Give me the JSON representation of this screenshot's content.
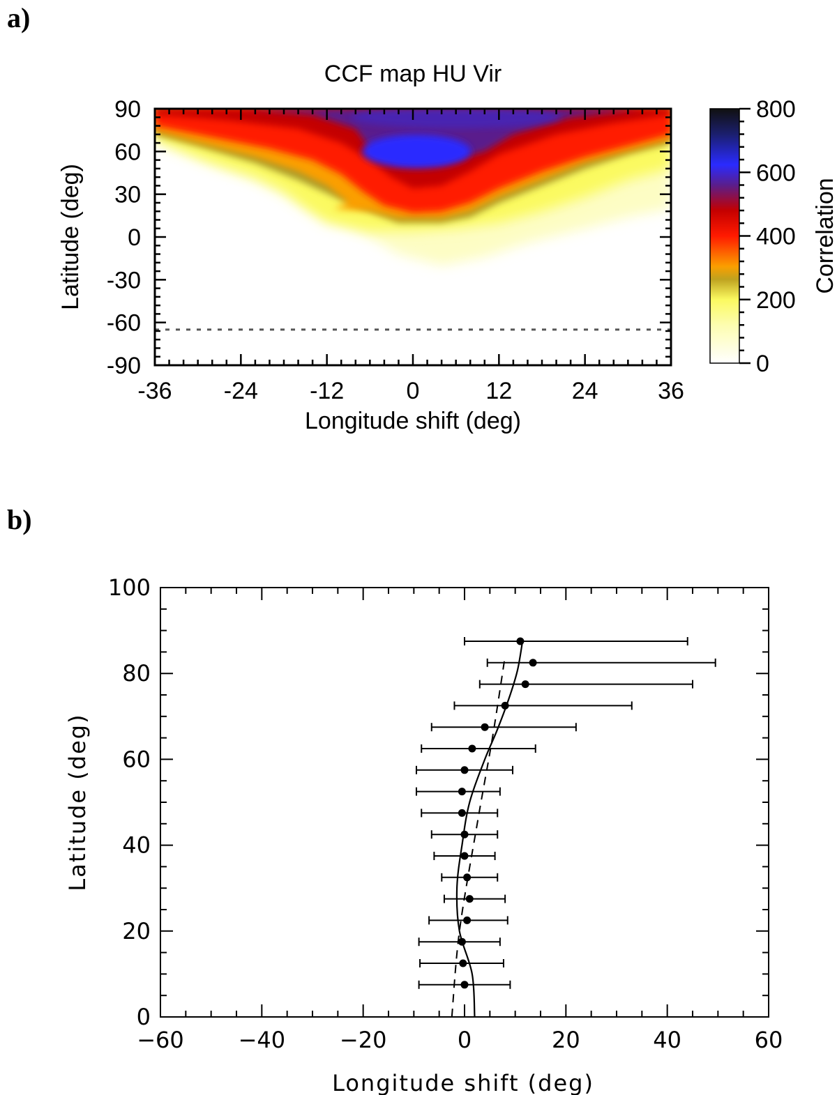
{
  "panel_a_label": "a)",
  "panel_b_label": "b)",
  "chart_data": [
    {
      "type": "heatmap",
      "title": "CCF map HU Vir",
      "xlabel": "Longitude shift (deg)",
      "ylabel": "Latitude (deg)",
      "xlim": [
        -36,
        36
      ],
      "ylim": [
        -90,
        90
      ],
      "xticks": [
        "-36",
        "-24",
        "-12",
        "0",
        "12",
        "24",
        "36"
      ],
      "yticks": [
        "90",
        "60",
        "30",
        "0",
        "-30",
        "-60",
        "-90"
      ],
      "colorbar": {
        "label": "Correlation",
        "range": [
          0,
          800
        ],
        "ticks": [
          "800",
          "600",
          "400",
          "200",
          "0"
        ]
      },
      "reference_line_latitude": -65,
      "peak": {
        "longitude_shift": 0,
        "latitude": 60,
        "correlation": 700
      },
      "colors": {
        "low": "#ffffff",
        "yellow": "#fbfa60",
        "orange": "#fb9f00",
        "red": "#ff1a00",
        "darkred": "#c40000",
        "purple": "#5a1e8c",
        "blue": "#2a2bff"
      }
    },
    {
      "type": "scatter",
      "xlabel": "Longitude shift (deg)",
      "ylabel": "Latitude (deg)",
      "xlim": [
        -60,
        60
      ],
      "ylim": [
        0,
        100
      ],
      "xticks": [
        "−60",
        "−40",
        "−20",
        "0",
        "20",
        "40",
        "60"
      ],
      "yticks": [
        "100",
        "80",
        "60",
        "40",
        "20",
        "0"
      ],
      "points": [
        {
          "lat": 7.5,
          "lon": 0.0,
          "err_lo": -9.0,
          "err_hi": 9.0
        },
        {
          "lat": 12.5,
          "lon": -0.3,
          "err_lo": -8.5,
          "err_hi": 8.0
        },
        {
          "lat": 17.5,
          "lon": -0.5,
          "err_lo": -8.5,
          "err_hi": 7.5
        },
        {
          "lat": 22.5,
          "lon": 0.5,
          "err_lo": -7.5,
          "err_hi": 8.0
        },
        {
          "lat": 27.5,
          "lon": 1.0,
          "err_lo": -5.0,
          "err_hi": 7.0
        },
        {
          "lat": 32.5,
          "lon": 0.5,
          "err_lo": -5.0,
          "err_hi": 6.0
        },
        {
          "lat": 37.5,
          "lon": 0.0,
          "err_lo": -6.0,
          "err_hi": 6.0
        },
        {
          "lat": 42.5,
          "lon": 0.0,
          "err_lo": -6.5,
          "err_hi": 6.5
        },
        {
          "lat": 47.5,
          "lon": -0.5,
          "err_lo": -8.0,
          "err_hi": 7.0
        },
        {
          "lat": 52.5,
          "lon": -0.5,
          "err_lo": -9.0,
          "err_hi": 7.5
        },
        {
          "lat": 57.5,
          "lon": 0.0,
          "err_lo": -9.5,
          "err_hi": 9.5
        },
        {
          "lat": 62.5,
          "lon": 1.5,
          "err_lo": -10.0,
          "err_hi": 12.5
        },
        {
          "lat": 67.5,
          "lon": 4.0,
          "err_lo": -10.5,
          "err_hi": 18.0
        },
        {
          "lat": 72.5,
          "lon": 8.0,
          "err_lo": -10.0,
          "err_hi": 25.0
        },
        {
          "lat": 77.5,
          "lon": 12.0,
          "err_lo": -9.0,
          "err_hi": 33.0
        },
        {
          "lat": 82.5,
          "lon": 13.5,
          "err_lo": -9.0,
          "err_hi": 36.0
        },
        {
          "lat": 87.5,
          "lon": 11.0,
          "err_lo": -11.0,
          "err_hi": 33.0
        }
      ],
      "solid_fit": [
        {
          "lon": 2.0,
          "lat": 0
        },
        {
          "lon": 1.5,
          "lat": 10
        },
        {
          "lon": -1.0,
          "lat": 20
        },
        {
          "lon": -1.5,
          "lat": 30
        },
        {
          "lon": -0.5,
          "lat": 40
        },
        {
          "lon": 1.0,
          "lat": 50
        },
        {
          "lon": 4.0,
          "lat": 60
        },
        {
          "lon": 6.5,
          "lat": 67
        },
        {
          "lon": 9.0,
          "lat": 75
        },
        {
          "lon": 10.5,
          "lat": 81
        },
        {
          "lon": 11.5,
          "lat": 88
        }
      ],
      "dashed_fit": [
        {
          "lon": -2.5,
          "lat": 0
        },
        {
          "lon": -1.0,
          "lat": 20
        },
        {
          "lon": 2.5,
          "lat": 45
        },
        {
          "lon": 5.5,
          "lat": 65
        },
        {
          "lon": 8.0,
          "lat": 84
        }
      ]
    }
  ]
}
